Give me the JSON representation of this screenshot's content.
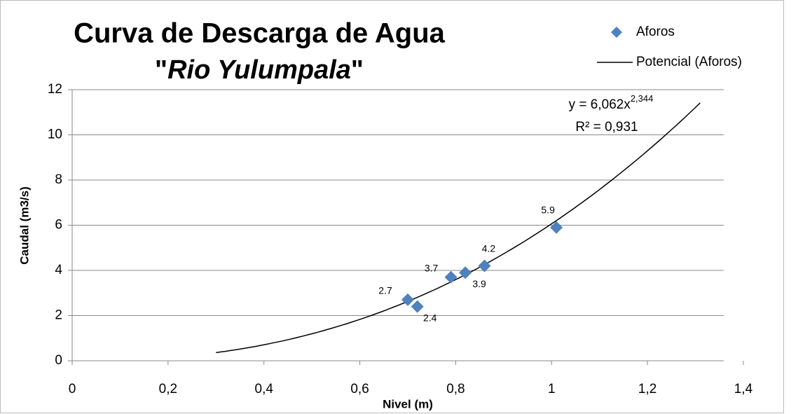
{
  "chart_data": {
    "type": "scatter",
    "title": "Curva de Descarga de Agua",
    "subtitle": "\"Rio Yulumpala\"",
    "x_label": "Nivel (m)",
    "y_label": "Caudal (m3/s)",
    "series": [
      {
        "name": "Aforos",
        "color": "#4f81bd",
        "x": [
          0.7,
          0.72,
          0.79,
          0.82,
          0.86,
          1.01
        ],
        "values": [
          2.7,
          2.4,
          3.7,
          3.9,
          4.2,
          5.9
        ]
      }
    ],
    "trendline": {
      "name": "Potencial (Aforos)",
      "color": "#000000",
      "coefficient": 6.062,
      "exponent": 2.344,
      "x_range": [
        0.3,
        1.31
      ],
      "equation": "y = 6,062x",
      "equation_exponent": "2,344",
      "r_squared": "R² = 0,931"
    },
    "xlim": [
      0,
      1.4
    ],
    "xticks": [
      0,
      {
        "value": 0.2,
        "label": "0,2"
      },
      {
        "value": 0.4,
        "label": "0,4"
      },
      {
        "value": 0.6,
        "label": "0,6"
      },
      {
        "value": 0.8,
        "label": "0,8"
      },
      1,
      {
        "value": 1.2,
        "label": "1,2"
      },
      {
        "value": 1.4,
        "label": "1,4"
      }
    ],
    "ylim": [
      0,
      12
    ],
    "yticks": [
      0,
      2,
      4,
      6,
      8,
      10,
      12
    ],
    "grid": true,
    "legend": "top-right"
  }
}
